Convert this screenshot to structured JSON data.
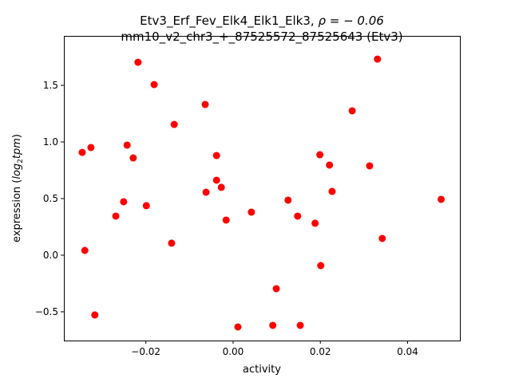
{
  "chart_data": {
    "type": "scatter",
    "title_line1": "Etv3_Erf_Fev_Elk4_Elk1_Elk3, ",
    "title_rho": "ρ = − 0.06",
    "title_line2": "mm10_v2_chr3_+_87525572_87525643 (Etv3)",
    "xlabel": "activity",
    "ylabel_prefix": "expression (",
    "ylabel_log": "log",
    "ylabel_sub": "2",
    "ylabel_tpm": "tpm",
    "ylabel_suffix": ")",
    "xlim": [
      -0.0388,
      0.052
    ],
    "ylim": [
      -0.754,
      1.937
    ],
    "xticks": [
      -0.02,
      0.0,
      0.02,
      0.04
    ],
    "xtick_labels": [
      "−0.02",
      "0.00",
      "0.02",
      "0.04"
    ],
    "yticks": [
      -0.5,
      0.0,
      0.5,
      1.0,
      1.5
    ],
    "ytick_labels": [
      "−0.5",
      "0.0",
      "0.5",
      "1.0",
      "1.5"
    ],
    "marker_color": "#ff0000",
    "grid": false,
    "points": [
      [
        -0.0346,
        0.908
      ],
      [
        -0.0326,
        0.951
      ],
      [
        -0.034,
        0.042
      ],
      [
        -0.0317,
        -0.528
      ],
      [
        -0.0218,
        1.704
      ],
      [
        -0.0181,
        1.507
      ],
      [
        -0.0243,
        0.972
      ],
      [
        -0.0229,
        0.859
      ],
      [
        -0.0251,
        0.472
      ],
      [
        -0.0269,
        0.345
      ],
      [
        -0.0199,
        0.437
      ],
      [
        -0.0135,
        1.155
      ],
      [
        -0.0141,
        0.106
      ],
      [
        -0.0064,
        1.331
      ],
      [
        -0.0038,
        0.88
      ],
      [
        -0.0038,
        0.662
      ],
      [
        -0.0062,
        0.556
      ],
      [
        -0.0027,
        0.599
      ],
      [
        -0.0016,
        0.31
      ],
      [
        0.0042,
        0.38
      ],
      [
        0.0011,
        -0.634
      ],
      [
        0.0091,
        -0.62
      ],
      [
        0.0099,
        -0.296
      ],
      [
        0.0154,
        -0.62
      ],
      [
        0.0126,
        0.486
      ],
      [
        0.0148,
        0.345
      ],
      [
        0.0188,
        0.282
      ],
      [
        0.0201,
        -0.092
      ],
      [
        0.0199,
        0.887
      ],
      [
        0.0221,
        0.796
      ],
      [
        0.0227,
        0.563
      ],
      [
        0.0273,
        1.275
      ],
      [
        0.0313,
        0.789
      ],
      [
        0.0331,
        1.732
      ],
      [
        0.0342,
        0.148
      ],
      [
        0.0477,
        0.493
      ]
    ]
  }
}
